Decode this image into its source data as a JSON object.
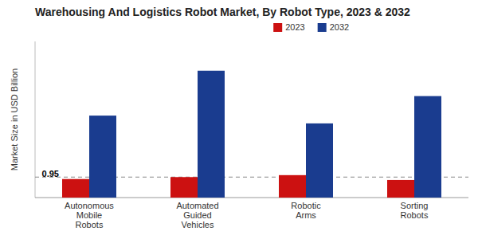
{
  "chart_data": {
    "type": "bar",
    "title": "Warehousing And Logistics Robot Market, By Robot Type, 2023 & 2032",
    "ylabel": "Market Size in USD Billion",
    "categories": [
      "Autonomous\nMobile\nRobots",
      "Automated\nGuided\nVehicles",
      "Robotic\nArms",
      "Sorting\nRobots"
    ],
    "series": [
      {
        "name": "2023",
        "color": "#cc1111",
        "values": [
          0.95,
          1.05,
          1.15,
          0.9
        ]
      },
      {
        "name": "2032",
        "color": "#1a3c8f",
        "values": [
          4.2,
          6.5,
          3.8,
          5.2
        ]
      }
    ],
    "ylim": [
      0,
      8.0
    ],
    "reference_line": 1.05,
    "annotations": [
      {
        "text": "0.95",
        "x": "Autonomous\nMobile\nRobots",
        "y": 0.95
      }
    ],
    "legend": "top",
    "tick_labels": "x",
    "grid": false
  }
}
